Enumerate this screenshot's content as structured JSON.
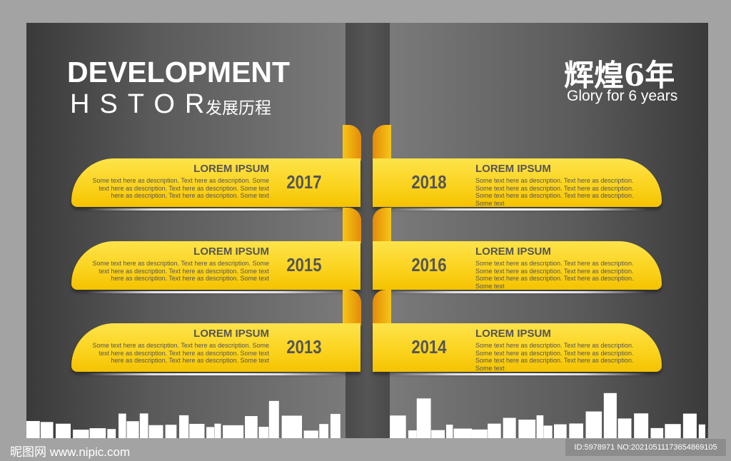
{
  "header": {
    "title": "DEVELOPMENT",
    "subtitle": "HSTOR",
    "subtitle_cn": "发展历程"
  },
  "badge": {
    "cn": "辉煌6年",
    "en": "Glory for 6 years"
  },
  "timeline": [
    {
      "year": "2017",
      "heading": "LOREM IPSUM",
      "desc": "Some text here as description. Text here as description. Some text here as description. Text here as description. Some text here as description. Text here as description. Some text",
      "side": "left"
    },
    {
      "year": "2018",
      "heading": "LOREM IPSUM",
      "desc": "Some text here as description. Text here as description. Some text here as description. Text here as description. Some text here as description. Text here as description. Some text",
      "side": "right"
    },
    {
      "year": "2015",
      "heading": "LOREM IPSUM",
      "desc": "Some text here as description. Text here as description. Some text here as description. Text here as description. Some text here as description. Text here as description. Some text",
      "side": "left"
    },
    {
      "year": "2016",
      "heading": "LOREM IPSUM",
      "desc": "Some text here as description. Text here as description. Some text here as description. Text here as description. Some text here as description. Text here as description. Some text",
      "side": "right"
    },
    {
      "year": "2013",
      "heading": "LOREM IPSUM",
      "desc": "Some text here as description. Text here as description. Some text here as description. Text here as description. Some text here as description. Text here as description. Some text",
      "side": "left"
    },
    {
      "year": "2014",
      "heading": "LOREM IPSUM",
      "desc": "Some text here as description. Text here as description. Some text here as description. Text here as description. Some text here as description. Text here as description. Some text",
      "side": "right"
    }
  ],
  "watermark": {
    "text": "昵图网 www.nipic.com",
    "id": "ID:5978971 NO:20210511173654869105"
  },
  "colors": {
    "ribbon": "#fbd21c",
    "curl": "#e48a0a",
    "text": "#555555"
  }
}
